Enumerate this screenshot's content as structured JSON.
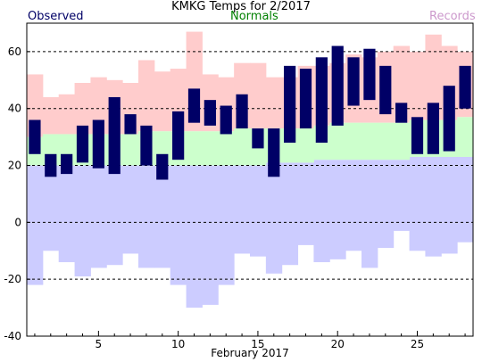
{
  "chart_data": {
    "type": "bar",
    "title": "KMKG Temps for 2/2017",
    "xlabel": "February 2017",
    "ylabel": "",
    "ylim": [
      -40,
      70
    ],
    "xlim": [
      0.5,
      28.5
    ],
    "yticks": [
      60,
      40,
      20,
      0,
      -20,
      -40
    ],
    "xticks": [
      5,
      10,
      15,
      20,
      25
    ],
    "grid": "dashed horizontal at y-ticks",
    "legend": [
      {
        "name": "Observed",
        "color": "#000066",
        "position": "top-left"
      },
      {
        "name": "Normals",
        "color": "#008000",
        "position": "top-center"
      },
      {
        "name": "Records",
        "color": "#cc99cc",
        "position": "top-right"
      }
    ],
    "colors": {
      "observed": "#000066",
      "normals": "#ccffcc",
      "records_high": "#ffcccc",
      "records_low": "#ccccff",
      "grid": "#000000"
    },
    "days": [
      1,
      2,
      3,
      4,
      5,
      6,
      7,
      8,
      9,
      10,
      11,
      12,
      13,
      14,
      15,
      16,
      17,
      18,
      19,
      20,
      21,
      22,
      23,
      24,
      25,
      26,
      27,
      28
    ],
    "series": [
      {
        "name": "Observed",
        "low": [
          24,
          16,
          17,
          21,
          19,
          17,
          31,
          20,
          15,
          22,
          35,
          34,
          31,
          33,
          26,
          16,
          28,
          33,
          28,
          34,
          41,
          43,
          38,
          35,
          24,
          24,
          25,
          40
        ],
        "high": [
          36,
          24,
          24,
          34,
          36,
          44,
          38,
          34,
          24,
          39,
          47,
          43,
          41,
          45,
          33,
          33,
          55,
          54,
          58,
          62,
          58,
          61,
          55,
          42,
          37,
          42,
          48,
          55
        ]
      },
      {
        "name": "Normals",
        "low": [
          20,
          20,
          20,
          20,
          20,
          20,
          20,
          20,
          20,
          20,
          20,
          20,
          20,
          20,
          20,
          21,
          21,
          21,
          22,
          22,
          22,
          22,
          22,
          22,
          23,
          23,
          23,
          23
        ],
        "high": [
          30,
          31,
          31,
          31,
          31,
          31,
          31,
          32,
          32,
          32,
          32,
          32,
          32,
          33,
          33,
          33,
          33,
          33,
          34,
          35,
          35,
          35,
          35,
          35,
          36,
          36,
          36,
          37
        ]
      },
      {
        "name": "Records",
        "low": [
          -22,
          -10,
          -14,
          -19,
          -16,
          -15,
          -11,
          -16,
          -16,
          -22,
          -30,
          -29,
          -22,
          -11,
          -12,
          -18,
          -15,
          -8,
          -14,
          -13,
          -10,
          -16,
          -9,
          -3,
          -10,
          -12,
          -11,
          -7
        ],
        "high": [
          52,
          44,
          45,
          49,
          51,
          50,
          49,
          57,
          53,
          54,
          67,
          52,
          51,
          56,
          56,
          51,
          51,
          55,
          55,
          56,
          59,
          58,
          60,
          62,
          60,
          66,
          62,
          60
        ]
      }
    ]
  }
}
